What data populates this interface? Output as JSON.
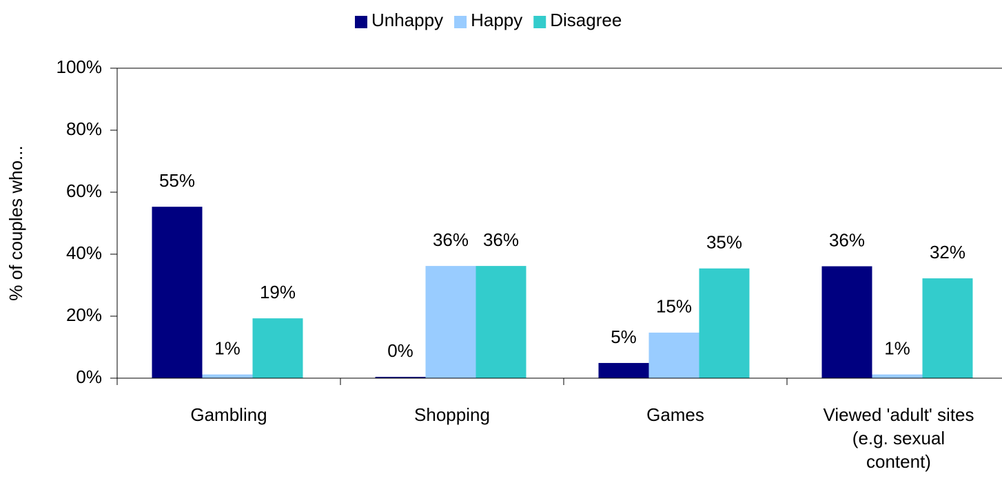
{
  "chart_data": {
    "type": "bar",
    "categories": [
      "Gambling",
      "Shopping",
      "Games",
      "Viewed 'adult' sites\n(e.g. sexual\ncontent)"
    ],
    "series": [
      {
        "name": "Unhappy",
        "color": "#000080",
        "values": [
          55.3,
          0.4,
          4.9,
          36.1
        ],
        "value_labels": [
          "55%",
          "0%",
          "5%",
          "36%"
        ]
      },
      {
        "name": "Happy",
        "color": "#99ccff",
        "values": [
          1.2,
          36.2,
          14.7,
          1.2
        ],
        "value_labels": [
          "1%",
          "36%",
          "15%",
          "1%"
        ]
      },
      {
        "name": "Disagree",
        "color": "#33cccc",
        "values": [
          19.3,
          36.2,
          35.4,
          32.2
        ],
        "value_labels": [
          "19%",
          "36%",
          "35%",
          "32%"
        ]
      }
    ],
    "y_label": "% of couples who...",
    "ylim": [
      0,
      100
    ],
    "yticks": [
      {
        "value": 0,
        "label": "0%"
      },
      {
        "value": 20,
        "label": "20%"
      },
      {
        "value": 40,
        "label": "40%"
      },
      {
        "value": 60,
        "label": "60%"
      },
      {
        "value": 80,
        "label": "80%"
      },
      {
        "value": 100,
        "label": "100%"
      }
    ],
    "legend": "top"
  }
}
